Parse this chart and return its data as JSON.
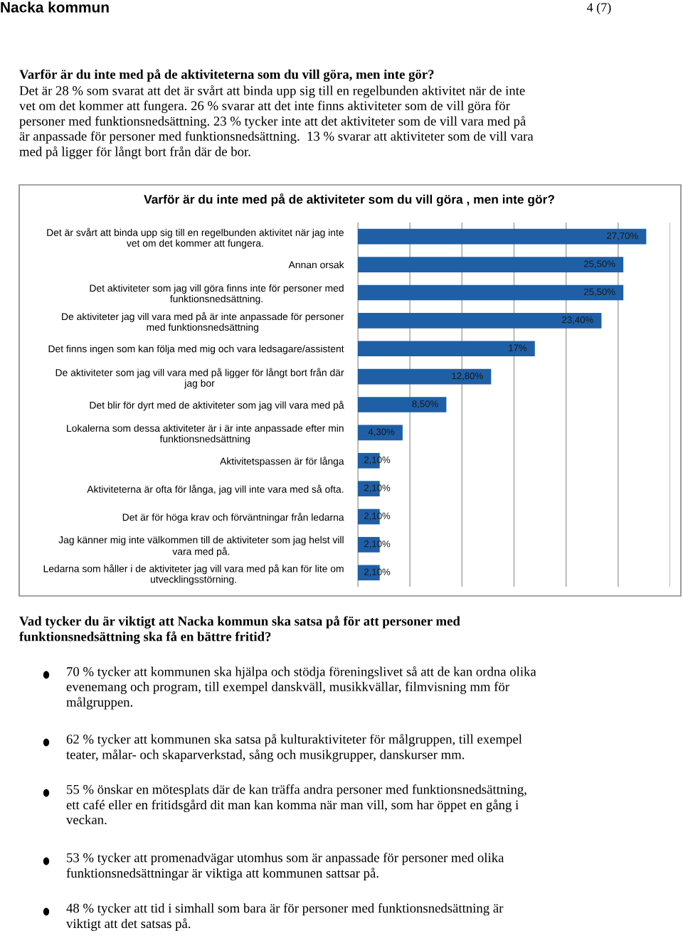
{
  "chart_data": {
    "type": "bar",
    "orientation": "horizontal",
    "title": "Varför är du inte med på de aktiviteter som du vill göra , men inte gör?",
    "categories": [
      "Det är svårt att binda upp sig till en regelbunden aktivitet när jag inte\nvet om det kommer att fungera.",
      "Annan orsak",
      "Det aktiviteter som jag vill göra finns inte för personer med\nfunktionsnedsättning.",
      "De aktiviteter jag vill vara med på är inte anpassade för personer\nmed funktionsnedsättning",
      "Det finns ingen som kan följa med mig och vara ledsagare/assistent",
      "De aktiviteter som jag vill vara med på ligger för långt bort från där\njag bor",
      "Det blir för dyrt med de aktiviteter som jag vill vara med på",
      "Lokalerna som dessa aktiviteter är i är inte anpassade efter min\nfunktionsnedsättning",
      "Aktivitetspassen är för långa",
      "Aktiviteterna är ofta för långa, jag vill inte vara med så ofta.",
      "Det är för höga krav och förväntningar från ledarna",
      "Jag känner mig inte välkommen till de aktiviteter som jag helst vill\nvara med på.",
      "Ledarna som håller i de aktiviteter jag vill vara med på kan för lite om\nutvecklingsstörning."
    ],
    "values": [
      27.7,
      25.5,
      25.5,
      23.4,
      17,
      12.8,
      8.5,
      4.3,
      2.1,
      2.1,
      2.1,
      2.1,
      2.1
    ],
    "value_labels": [
      "27,70%",
      "25,50%",
      "25,50%",
      "23,40%",
      "17%",
      "12,80%",
      "8,50%",
      "4,30%",
      "2,10%",
      "2,10%",
      "2,10%",
      "2,10%",
      "2,10%"
    ],
    "color": "#1f5fa6",
    "xlim": [
      0,
      30
    ],
    "xticks": [
      {
        "value": 0,
        "label": null
      },
      {
        "value": 5,
        "label": null
      },
      {
        "value": 10,
        "label": null
      },
      {
        "value": 15,
        "label": null
      },
      {
        "value": 20,
        "label": null
      },
      {
        "value": 25,
        "label": null
      },
      {
        "value": 30,
        "label": null
      }
    ],
    "grid": "x",
    "legend": false,
    "tick_labels": "y",
    "annotations": [
      "Nacka kommun",
      "4 (7)",
      "Varför är du inte med på de aktiviteterna som du vill göra, men inte gör?",
      "Det är 28 % som svarat att det är svårt att binda upp sig till en regelbunden aktivitet när de inte\nvet om det kommer att fungera. 26 % svarar att det inte finns aktiviteter som de vill göra för\npersoner med funktionsnedsättning. 23 % tycker inte att det aktiviteter som de vill vara med på\när anpassade för personer med funktionsnedsättning.  13 % svarar att aktiviteter som de vill vara\nmed på ligger för långt bort från där de bor.",
      "Vad tycker du är viktigt att Nacka kommun ska satsa på för att personer med\nfunktionsnedsättning ska få en bättre fritid?",
      "70 % tycker att kommunen ska hjälpa och stödja föreningslivet så att de kan ordna olika\nevenemang och program, till exempel danskväll, musikkvällar, filmvisning mm för\nmålgruppen.",
      "62 % tycker att kommunen ska satsa på kulturaktiviteter för målgruppen, till exempel\nteater, målar- och skaparverkstad, sång och musikgrupper, danskurser mm.",
      "55 % önskar en mötesplats där de kan träffa andra personer med funktionsnedsättning,\nett café eller en fritidsgård dit man kan komma när man vill, som har öppet en gång i\nveckan.",
      "53 % tycker att promenadvägar utomhus som är anpassade för personer med olika\nfunktionsnedsättningar är viktiga att kommunen sattsar på.",
      "48 % tycker att tid i simhall som bara är för personer med funktionsnedsättning är\nviktigt att det satsas på."
    ]
  }
}
